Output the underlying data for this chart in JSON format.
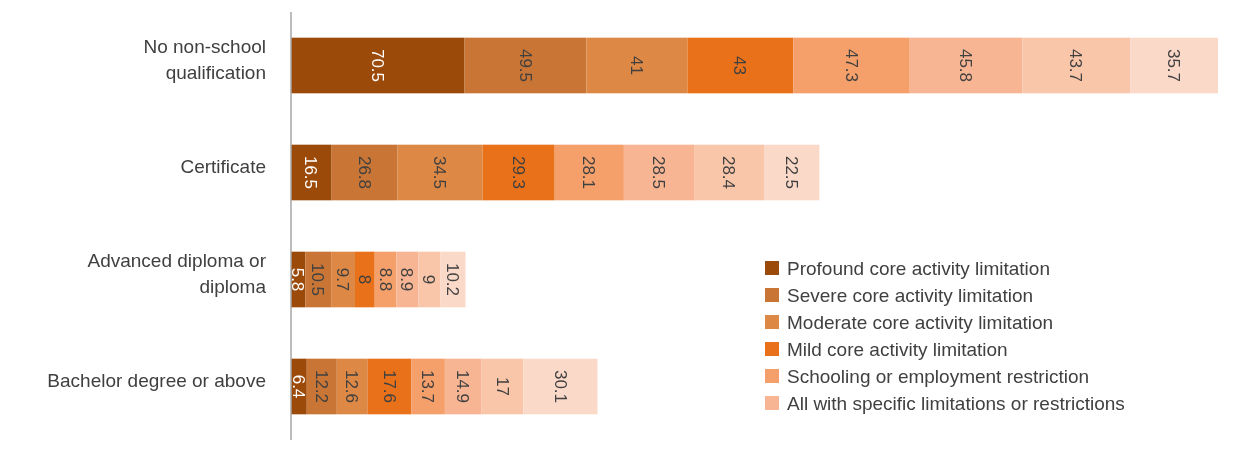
{
  "chart_data": {
    "type": "bar",
    "orientation": "horizontal",
    "stacked": true,
    "data_labels": true,
    "legend": "bottom right",
    "categories": [
      "No non-school qualification",
      "Certificate",
      "Advanced diploma or diploma",
      "Bachelor degree or above"
    ],
    "series": [
      {
        "name": "Profound core activity limitation",
        "color": "#9c4a0a",
        "values": [
          70.5,
          16.5,
          5.8,
          6.4
        ]
      },
      {
        "name": "Severe core activity limitation",
        "color": "#c87535",
        "values": [
          49.5,
          26.8,
          10.5,
          12.2
        ]
      },
      {
        "name": "Moderate core activity limitation",
        "color": "#dd8845",
        "values": [
          41,
          34.5,
          9.7,
          12.6
        ]
      },
      {
        "name": "Mild core activity limitation",
        "color": "#e8711a",
        "values": [
          43,
          29.3,
          8,
          17.6
        ]
      },
      {
        "name": "Schooling or employment restriction",
        "color": "#f5a06a",
        "values": [
          47.3,
          28.1,
          8.8,
          13.7
        ]
      },
      {
        "name": "All with specific limitations or restrictions",
        "color": "#f7b593",
        "values": [
          45.8,
          28.5,
          8.9,
          14.9
        ]
      },
      {
        "color": "#f9c6aa",
        "values": [
          43.7,
          28.4,
          9,
          17
        ]
      },
      {
        "color": "#fbd9c9",
        "values": [
          35.7,
          22.5,
          10.2,
          30.1
        ]
      }
    ]
  }
}
